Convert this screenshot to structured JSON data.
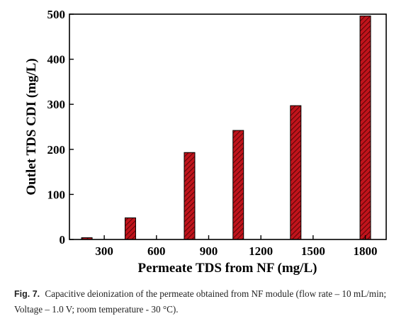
{
  "chart_data": {
    "type": "bar",
    "title": "",
    "xlabel": "Permeate TDS from NF (mg/L)",
    "ylabel": "Outlet TDS CDI (mg/L)",
    "x": [
      200,
      450,
      790,
      1070,
      1400,
      1800
    ],
    "values": [
      4,
      48,
      193,
      242,
      297,
      496
    ],
    "xlim": [
      100,
      1920
    ],
    "ylim": [
      0,
      500
    ],
    "xticks": [
      300,
      600,
      900,
      1200,
      1500,
      1800
    ],
    "yticks": [
      0,
      100,
      200,
      300,
      400,
      500
    ],
    "grid": false,
    "bar_color": "#c0141c",
    "bar_pattern": "diagonal-hatch"
  },
  "caption": {
    "label": "Fig. 7.",
    "text": "Capacitive deionization of the permeate obtained from NF module (flow rate – 10 mL/min; Voltage – 1.0 V; room temperature - 30 °C)."
  }
}
